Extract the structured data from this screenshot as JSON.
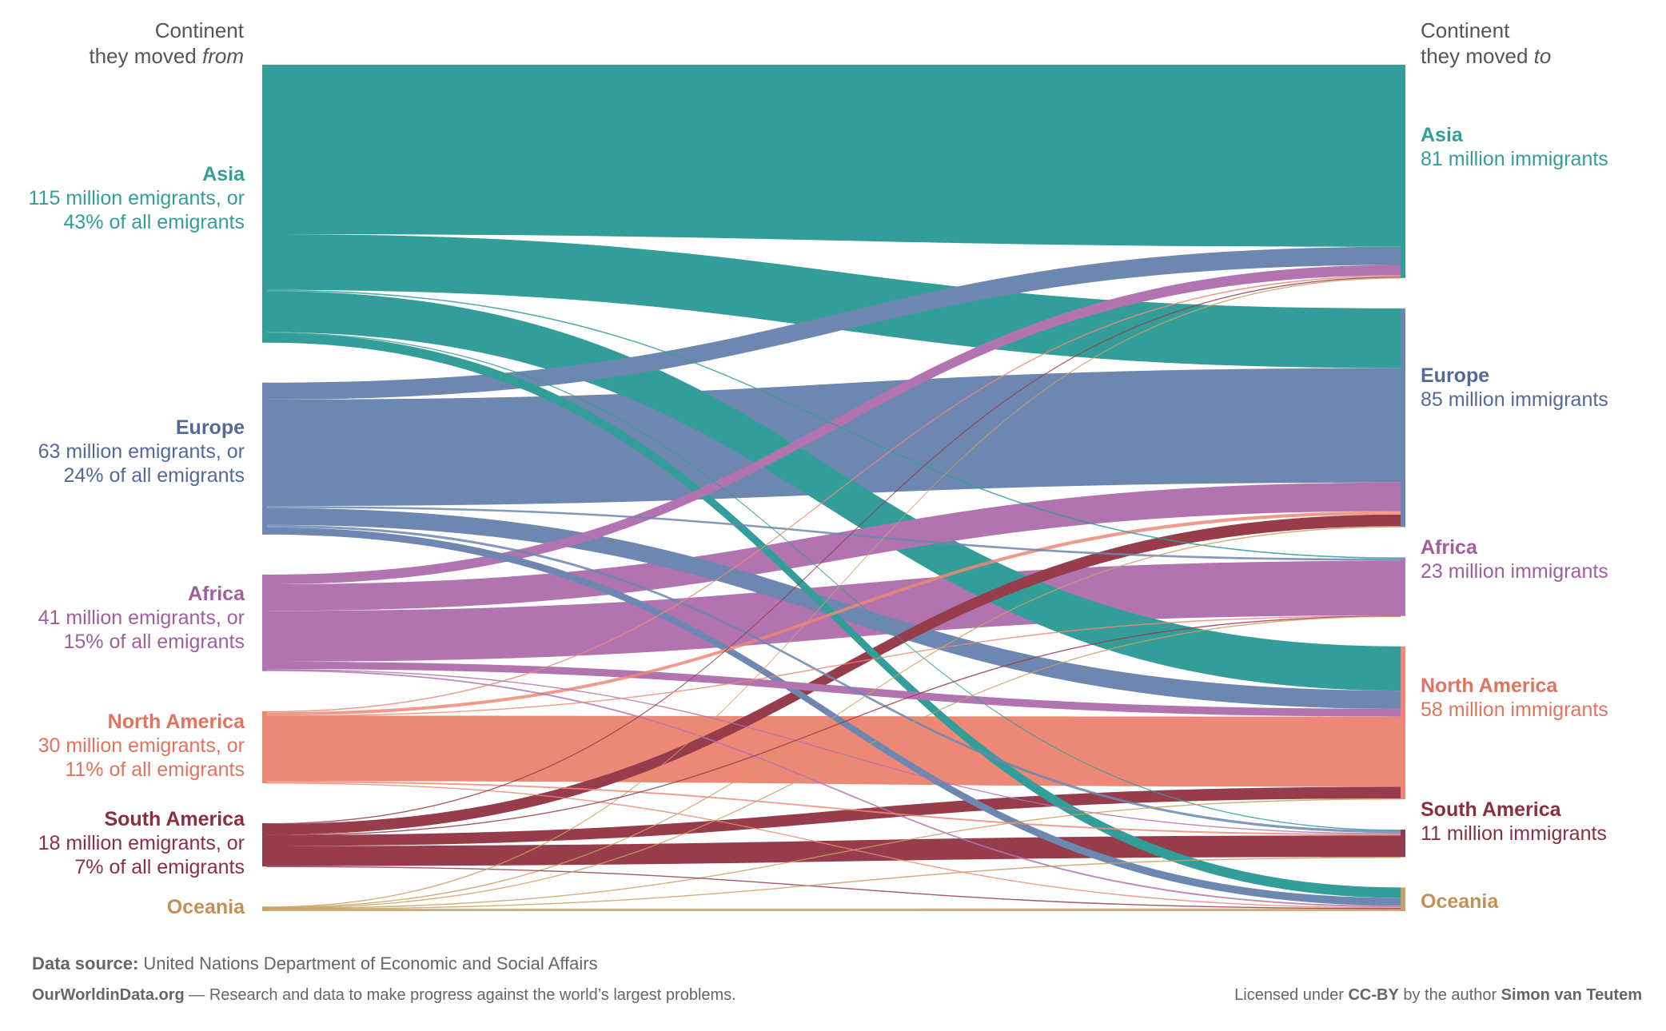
{
  "header": {
    "left_line1": "Continent",
    "left_line2_pre": "they moved ",
    "left_line2_em": "from",
    "right_line1": "Continent",
    "right_line2_pre": "they moved ",
    "right_line2_em": "to"
  },
  "origins": [
    {
      "name": "Asia",
      "line1": "115 million emigrants, or",
      "line2": "43% of all emigrants",
      "color": "#339e99"
    },
    {
      "name": "Europe",
      "line1": "63 million emigrants, or",
      "line2": "24% of all emigrants",
      "color": "#6d87b0"
    },
    {
      "name": "Africa",
      "line1": "41 million emigrants, or",
      "line2": "15% of all emigrants",
      "color": "#b174b0"
    },
    {
      "name": "North America",
      "line1": "30 million emigrants, or",
      "line2": "11% of all emigrants",
      "color": "#ec8875"
    },
    {
      "name": "South America",
      "line1": "18 million emigrants, or",
      "line2": "7% of all emigrants",
      "color": "#963c4a"
    },
    {
      "name": "Oceania",
      "line1": "",
      "line2": "",
      "color": "#c9a065"
    }
  ],
  "destinations": [
    {
      "name": "Asia",
      "sub": "81 million immigrants",
      "color": "#339e99"
    },
    {
      "name": "Europe",
      "sub": "85 million immigrants",
      "color": "#6d87b0"
    },
    {
      "name": "Africa",
      "sub": "23 million immigrants",
      "color": "#b174b0"
    },
    {
      "name": "North America",
      "sub": "58 million immigrants",
      "color": "#ec8875"
    },
    {
      "name": "South America",
      "sub": "11 million immigrants",
      "color": "#963c4a"
    },
    {
      "name": "Oceania",
      "sub": "",
      "color": "#c9a065"
    }
  ],
  "chart_data": {
    "type": "sankey",
    "units": "million people",
    "nodes_from": [
      "Asia",
      "Europe",
      "Africa",
      "North America",
      "South America",
      "Oceania"
    ],
    "nodes_to": [
      "Asia",
      "Europe",
      "Africa",
      "North America",
      "South America",
      "Oceania"
    ],
    "emigrants": [
      115,
      63,
      41,
      30,
      18,
      2
    ],
    "immigrants": [
      81,
      85,
      23,
      58,
      11,
      9
    ],
    "flows": [
      {
        "from": "Asia",
        "to": "Asia",
        "value": 70
      },
      {
        "from": "Asia",
        "to": "Europe",
        "value": 23
      },
      {
        "from": "Asia",
        "to": "Africa",
        "value": 0.5
      },
      {
        "from": "Asia",
        "to": "North America",
        "value": 17
      },
      {
        "from": "Asia",
        "to": "South America",
        "value": 0.3
      },
      {
        "from": "Asia",
        "to": "Oceania",
        "value": 4
      },
      {
        "from": "Europe",
        "to": "Asia",
        "value": 7
      },
      {
        "from": "Europe",
        "to": "Europe",
        "value": 44
      },
      {
        "from": "Europe",
        "to": "Africa",
        "value": 0.8
      },
      {
        "from": "Europe",
        "to": "North America",
        "value": 7
      },
      {
        "from": "Europe",
        "to": "South America",
        "value": 1
      },
      {
        "from": "Europe",
        "to": "Oceania",
        "value": 3
      },
      {
        "from": "Africa",
        "to": "Asia",
        "value": 4
      },
      {
        "from": "Africa",
        "to": "Europe",
        "value": 11
      },
      {
        "from": "Africa",
        "to": "Africa",
        "value": 21
      },
      {
        "from": "Africa",
        "to": "North America",
        "value": 3
      },
      {
        "from": "Africa",
        "to": "South America",
        "value": 0.3
      },
      {
        "from": "Africa",
        "to": "Oceania",
        "value": 0.6
      },
      {
        "from": "North America",
        "to": "Asia",
        "value": 0.5
      },
      {
        "from": "North America",
        "to": "Europe",
        "value": 1.3
      },
      {
        "from": "North America",
        "to": "Africa",
        "value": 0.1
      },
      {
        "from": "North America",
        "to": "North America",
        "value": 27
      },
      {
        "from": "North America",
        "to": "South America",
        "value": 0.6
      },
      {
        "from": "North America",
        "to": "Oceania",
        "value": 0.3
      },
      {
        "from": "South America",
        "to": "Asia",
        "value": 0.3
      },
      {
        "from": "South America",
        "to": "Europe",
        "value": 4.5
      },
      {
        "from": "South America",
        "to": "Africa",
        "value": 0.1
      },
      {
        "from": "South America",
        "to": "North America",
        "value": 4.5
      },
      {
        "from": "South America",
        "to": "South America",
        "value": 8.3
      },
      {
        "from": "South America",
        "to": "Oceania",
        "value": 0.2
      },
      {
        "from": "Oceania",
        "to": "Asia",
        "value": 0.2
      },
      {
        "from": "Oceania",
        "to": "Europe",
        "value": 0.3
      },
      {
        "from": "Oceania",
        "to": "Africa",
        "value": 0.05
      },
      {
        "from": "Oceania",
        "to": "North America",
        "value": 0.3
      },
      {
        "from": "Oceania",
        "to": "South America",
        "value": 0.05
      },
      {
        "from": "Oceania",
        "to": "Oceania",
        "value": 1
      }
    ]
  },
  "footer": {
    "source_label": "Data source:",
    "source_text": " United Nations Department of Economic and Social Affairs",
    "owid_name": "OurWorldinData.org",
    "owid_text": " — Research and data to make progress against the world’s largest problems.",
    "license_pre": "Licensed under ",
    "license_name": "CC-BY",
    "license_mid": " by the author ",
    "license_author": "Simon van Teutem"
  }
}
